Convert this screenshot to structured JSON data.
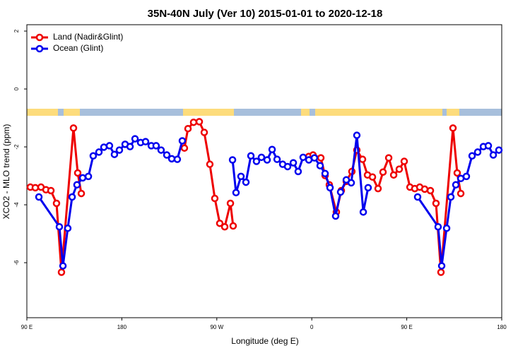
{
  "chart_data": {
    "type": "line",
    "title": "35N-40N July (Ver 10)   2015-01-01 to 2020-12-18",
    "x_label": "Longitude (deg E)",
    "y_label": "XCO2 - MLO trend (ppm)",
    "xlim": [
      90,
      540
    ],
    "xticks": [
      {
        "value": 90,
        "label": "90 E"
      },
      {
        "value": 180,
        "label": "180"
      },
      {
        "value": 270,
        "label": "90 W"
      },
      {
        "value": 360,
        "label": "0"
      },
      {
        "value": 450,
        "label": "90 E"
      },
      {
        "value": 540,
        "label": "180"
      }
    ],
    "ylim": [
      -7.9,
      2.22
    ],
    "yticks": [
      2,
      0,
      -2,
      -4,
      -6
    ],
    "legend": "top-left",
    "series": [
      {
        "name": "Land (Nadir&Glint)",
        "color": "#ee0000",
        "x": [
          93.3,
          98.0,
          103.4,
          108.1,
          112.8,
          118.1,
          122.8,
          134.2,
          138.2,
          141.6,
          null,
          239.3,
          242.7,
          248.0,
          253.4,
          258.1,
          263.4,
          268.1,
          272.8,
          277.5,
          282.9,
          285.5,
          null,
          357.2,
          361.2,
          368.6,
          372.6,
          376.6,
          383.3,
          388.0,
          392.7,
          398.0,
          402.7,
          408.1,
          412.8,
          417.5,
          422.8,
          427.5,
          432.9,
          437.6,
          442.9,
          447.6,
          453.0,
          457.6,
          462.3,
          467.0,
          472.4,
          477.7,
          482.4,
          493.8,
          497.8,
          501.2
        ],
        "values": [
          -3.39,
          -3.41,
          -3.39,
          -3.48,
          -3.51,
          -3.95,
          -6.33,
          -1.35,
          -2.9,
          -3.61,
          null,
          -2.04,
          -1.37,
          -1.15,
          -1.13,
          -1.5,
          -2.6,
          -3.78,
          -4.64,
          -4.76,
          -3.95,
          -4.73,
          null,
          -2.33,
          -2.28,
          -2.38,
          -2.99,
          -3.31,
          -4.25,
          -3.51,
          -3.19,
          -2.85,
          -2.11,
          -2.43,
          -2.97,
          -3.04,
          -3.44,
          -2.87,
          -2.38,
          -2.97,
          -2.77,
          -2.5,
          -3.39,
          -3.44,
          -3.39,
          -3.46,
          -3.51,
          -3.95,
          -6.33,
          -1.35,
          -2.9,
          -3.61
        ]
      },
      {
        "name": "Ocean (Glint)",
        "color": "#0000ee",
        "x": [
          101.4,
          120.8,
          124.2,
          128.8,
          132.9,
          137.5,
          142.9,
          148.3,
          152.9,
          158.3,
          163.0,
          168.3,
          173.0,
          177.7,
          183.1,
          187.8,
          192.5,
          197.8,
          202.5,
          207.9,
          212.5,
          217.2,
          222.6,
          227.3,
          232.6,
          237.3,
          null,
          284.9,
          288.2,
          292.9,
          297.6,
          302.3,
          307.6,
          312.3,
          317.7,
          322.4,
          327.1,
          332.4,
          337.1,
          342.5,
          347.1,
          351.8,
          357.2,
          362.5,
          367.9,
          372.6,
          377.3,
          382.6,
          387.3,
          392.7,
          397.4,
          402.7,
          408.8,
          413.4,
          null,
          460.3,
          479.7,
          483.1,
          487.8,
          491.8,
          496.5,
          501.2,
          506.5,
          511.9,
          517.2,
          522.6,
          527.3,
          532.0,
          537.3
        ],
        "values": [
          -3.73,
          -4.76,
          -6.11,
          -4.81,
          -3.73,
          -3.31,
          -3.07,
          -3.02,
          -2.31,
          -2.18,
          -2.01,
          -1.96,
          -2.26,
          -2.11,
          -1.91,
          -1.99,
          -1.72,
          -1.85,
          -1.82,
          -1.96,
          -1.96,
          -2.11,
          -2.28,
          -2.41,
          -2.43,
          -1.79,
          null,
          -2.45,
          -3.58,
          -3.02,
          -3.22,
          -2.31,
          -2.5,
          -2.36,
          -2.45,
          -2.09,
          -2.43,
          -2.6,
          -2.68,
          -2.55,
          -2.85,
          -2.36,
          -2.45,
          -2.38,
          -2.65,
          -2.92,
          -3.41,
          -4.39,
          -3.56,
          -3.14,
          -3.24,
          -1.6,
          -4.25,
          -3.41,
          null,
          -3.73,
          -4.76,
          -6.11,
          -4.81,
          -3.73,
          -3.31,
          -3.09,
          -3.02,
          -2.31,
          -2.18,
          -1.99,
          -1.96,
          -2.28,
          -2.11
        ]
      }
    ]
  }
}
